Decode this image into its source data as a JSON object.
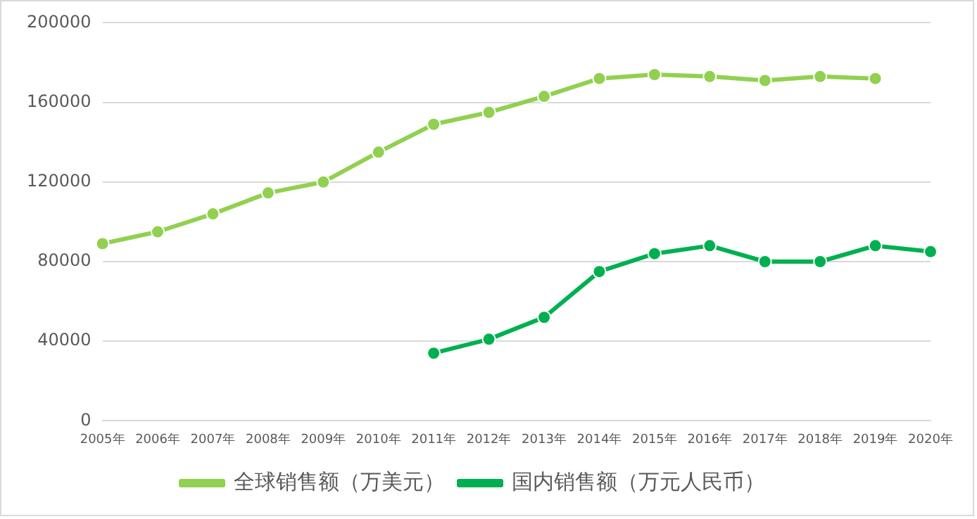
{
  "chart_data": {
    "type": "line",
    "categories": [
      "2005年",
      "2006年",
      "2007年",
      "2008年",
      "2009年",
      "2010年",
      "2011年",
      "2012年",
      "2013年",
      "2014年",
      "2015年",
      "2016年",
      "2017年",
      "2018年",
      "2019年",
      "2020年"
    ],
    "series": [
      {
        "name": "全球销售额（万美元）",
        "color": "#92d050",
        "values": [
          89000,
          95000,
          104000,
          114500,
          120000,
          135000,
          149000,
          155000,
          163000,
          172000,
          174000,
          173000,
          171000,
          173000,
          172000,
          null
        ]
      },
      {
        "name": "国内销售额（万元人民币）",
        "color": "#00b050",
        "values": [
          null,
          null,
          null,
          null,
          null,
          null,
          34000,
          41000,
          52000,
          75000,
          84000,
          88000,
          80000,
          80000,
          88000,
          85000
        ]
      }
    ],
    "ylim": [
      0,
      200000
    ],
    "yticks": [
      0,
      40000,
      80000,
      120000,
      160000,
      200000
    ],
    "grid": "y",
    "legend": "bottom",
    "marker": "circle",
    "line_style": "solid"
  }
}
